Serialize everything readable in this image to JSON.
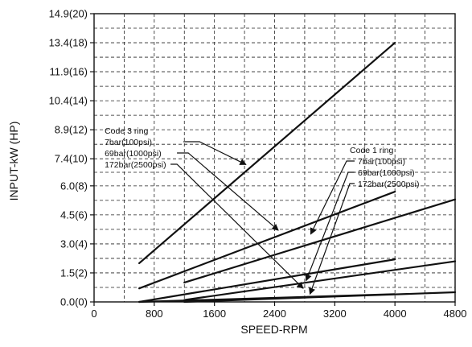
{
  "chart_data": {
    "type": "line",
    "xlabel": "SPEED-RPM",
    "ylabel": "INPUT-kW (HP)",
    "xlim": [
      0,
      4800
    ],
    "ylim": [
      0,
      14.9
    ],
    "x_ticks": [
      0,
      800,
      1600,
      2400,
      3200,
      4000,
      4800
    ],
    "y_ticks": [
      0.0,
      1.5,
      3.0,
      4.5,
      6.0,
      7.4,
      8.9,
      10.4,
      11.9,
      13.4,
      14.9
    ],
    "x_tick_labels": [
      "0",
      "800",
      "1600",
      "2400",
      "3200",
      "4000",
      "4800"
    ],
    "y_tick_labels": [
      "0.0(0)",
      "1.5(2)",
      "3.0(4)",
      "4.5(6)",
      "6.0(8)",
      "7.4(10)",
      "8.9(12)",
      "10.4(14)",
      "11.9(16)",
      "13.4(18)",
      "14.9(20)"
    ],
    "grid": true,
    "grid_style": "dashed",
    "series": [
      {
        "x": [
          600,
          4000
        ],
        "y": [
          2.0,
          13.4
        ]
      },
      {
        "x": [
          600,
          4000
        ],
        "y": [
          0.7,
          5.7
        ]
      },
      {
        "x": [
          600,
          4000
        ],
        "y": [
          0.0,
          2.2
        ]
      },
      {
        "x": [
          600,
          4000
        ],
        "y": [
          0.0,
          0.4
        ]
      },
      {
        "x": [
          1200,
          4800
        ],
        "y": [
          1.0,
          5.3
        ]
      },
      {
        "x": [
          1200,
          4800
        ],
        "y": [
          0.1,
          2.1
        ]
      },
      {
        "x": [
          1200,
          4800
        ],
        "y": [
          0.0,
          0.5
        ]
      }
    ],
    "annotations": [
      {
        "title": "Code 3 ring",
        "items": [
          "7bar(100psi)",
          "69bar(1000psi)",
          "172bar(2500psi)"
        ],
        "text_anchor": [
          140,
          8.7
        ],
        "arrow_targets": [
          [
            2020,
            7.1
          ],
          [
            2450,
            3.7
          ],
          [
            2780,
            0.7
          ]
        ]
      },
      {
        "title": "Code 1 ring",
        "items": [
          "7bar(100psi)",
          "69bar(1000psi)",
          "172bar(2500psi)"
        ],
        "text_anchor": [
          3400,
          7.7
        ],
        "arrow_targets": [
          [
            2880,
            3.5
          ],
          [
            2820,
            1.1
          ],
          [
            2870,
            0.4
          ]
        ]
      }
    ]
  }
}
